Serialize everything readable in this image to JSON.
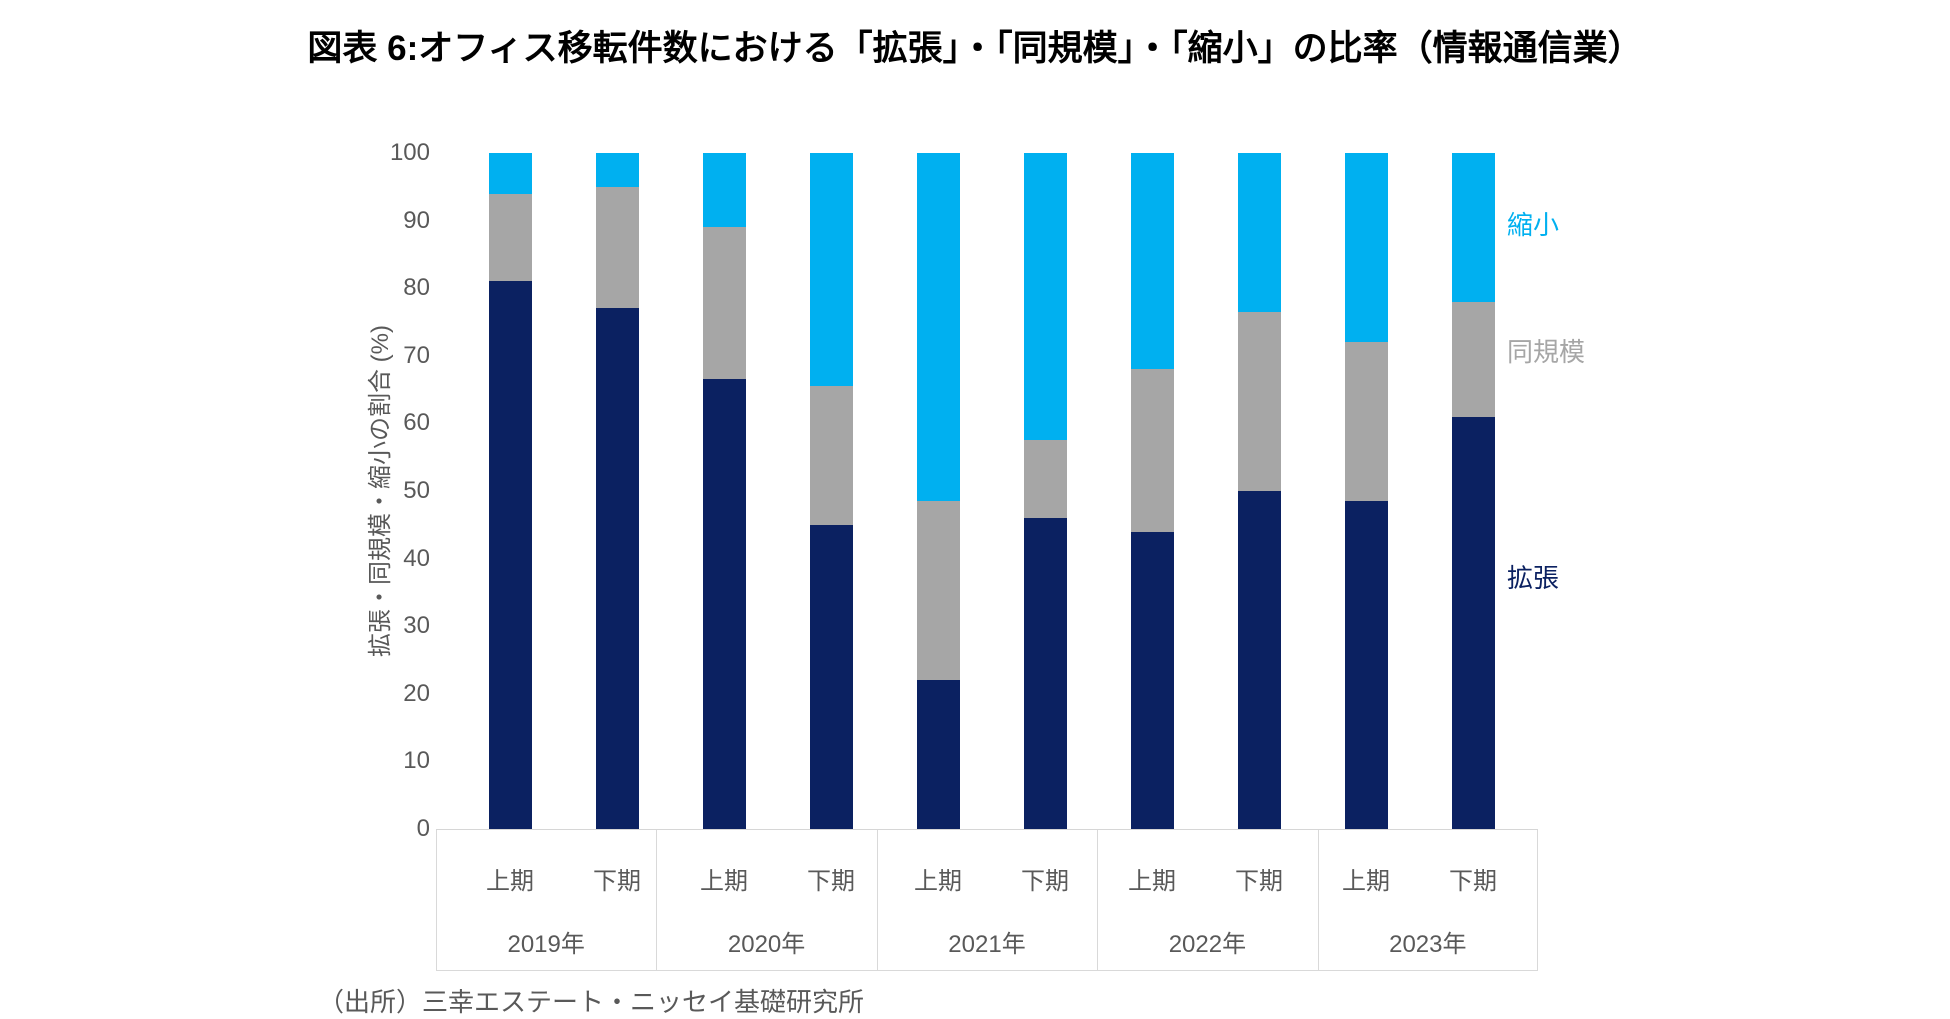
{
  "title": "図表 6:オフィス移転件数における「拡張」・「同規模」・「縮小」の比率（情報通信業）",
  "source": "（出所）三幸エステート・ニッセイ基礎研究所",
  "y_axis": {
    "label": "拡張・同規模・縮小の割合 (%)",
    "ticks": [
      100,
      90,
      80,
      70,
      60,
      50,
      40,
      30,
      20,
      10,
      0
    ]
  },
  "legend": {
    "shrink": "縮小",
    "same": "同規模",
    "expand": "拡張"
  },
  "colors": {
    "expand": "#0b2161",
    "same": "#a6a6a6",
    "shrink": "#00b0f0",
    "axis_text": "#595959",
    "frame_line": "#d9d9d9",
    "title_text": "#000000"
  },
  "chart_data": {
    "type": "bar",
    "stacked": true,
    "unit": "%",
    "ylim": [
      0,
      100
    ],
    "grid": false,
    "legend_position": "right",
    "groups": [
      {
        "year": "2019年",
        "periods": [
          "上期",
          "下期"
        ]
      },
      {
        "year": "2020年",
        "periods": [
          "上期",
          "下期"
        ]
      },
      {
        "year": "2021年",
        "periods": [
          "上期",
          "下期"
        ]
      },
      {
        "year": "2022年",
        "periods": [
          "上期",
          "下期"
        ]
      },
      {
        "year": "2023年",
        "periods": [
          "上期",
          "下期"
        ]
      }
    ],
    "series": [
      {
        "name": "拡張",
        "key": "expand",
        "color": "#0b2161",
        "values": [
          81,
          77,
          66.5,
          45,
          22,
          46,
          44,
          50,
          48.5,
          61
        ]
      },
      {
        "name": "同規模",
        "key": "same",
        "color": "#a6a6a6",
        "values": [
          13,
          18,
          22.5,
          20.5,
          26.5,
          11.5,
          24,
          26.5,
          23.5,
          17
        ]
      },
      {
        "name": "縮小",
        "key": "shrink",
        "color": "#00b0f0",
        "values": [
          6,
          5,
          11,
          34.5,
          51.5,
          42.5,
          32,
          23.5,
          28,
          22
        ]
      }
    ]
  }
}
